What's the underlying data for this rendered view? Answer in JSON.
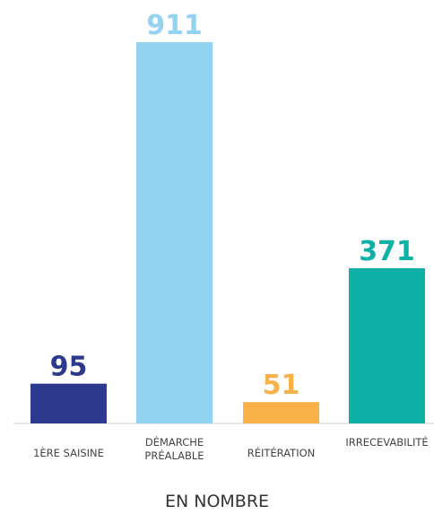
{
  "chart_data": {
    "type": "bar",
    "x_label": "EN NOMBRE",
    "categories": [
      "1ÈRE SAISINE",
      "DÉMARCHE PRÉALABLE",
      "RÉITÉRATION",
      "IRRECEVABILITÉ"
    ],
    "values": [
      95,
      911,
      51,
      371
    ],
    "colors": [
      "#2b3a8c",
      "#93d3f2",
      "#f9b24a",
      "#0db1a6"
    ],
    "ylim": [
      0,
      911
    ]
  }
}
